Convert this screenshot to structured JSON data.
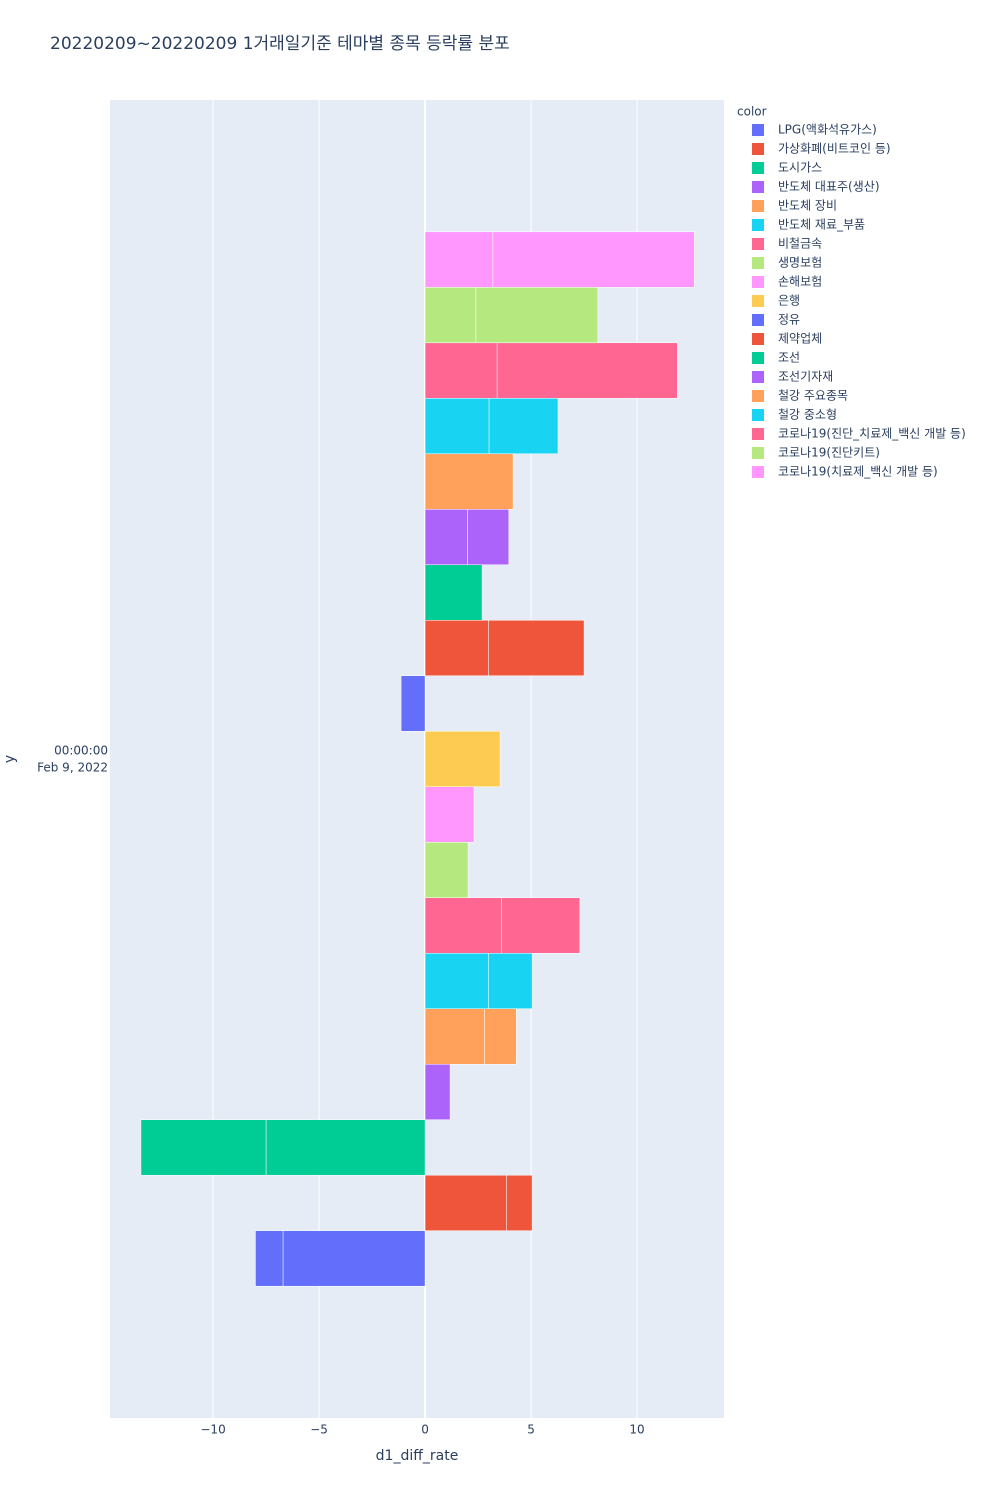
{
  "chart_data": {
    "type": "bar",
    "orientation": "horizontal",
    "barmode": "relative",
    "title": "20220209~20220209 1거래일기준 테마별 종목 등락률 분포",
    "xlabel": "d1_diff_rate",
    "ylabel": "y",
    "legend_title": "color",
    "ytick_label": [
      "00:00:00",
      "Feb 9, 2022"
    ],
    "xlim": [
      -14.86,
      14.1
    ],
    "xticks": [
      {
        "value": -10,
        "label": "−10"
      },
      {
        "value": -5,
        "label": "−5"
      },
      0,
      5,
      10
    ],
    "grid": true,
    "legend": "right",
    "series": [
      {
        "name": "LPG(액화석유가스)",
        "color": "#636efa",
        "values": [
          -6.7,
          -1.3
        ]
      },
      {
        "name": "가상화폐(비트코인 등)",
        "color": "#EF553B",
        "values": [
          3.85,
          1.2
        ]
      },
      {
        "name": "도시가스",
        "color": "#00cc96",
        "values": [
          -7.5,
          -5.9
        ]
      },
      {
        "name": "반도체 대표주(생산)",
        "color": "#ab63fa",
        "values": [
          1.18
        ]
      },
      {
        "name": "반도체 장비",
        "color": "#FFA15A",
        "values": [
          2.8,
          1.5
        ]
      },
      {
        "name": "반도체 재료_부품",
        "color": "#19d3f3",
        "values": [
          3.0,
          2.05
        ]
      },
      {
        "name": "비철금속",
        "color": "#FF6692",
        "values": [
          3.6,
          3.7
        ]
      },
      {
        "name": "생명보험",
        "color": "#B6E880",
        "values": [
          2.03
        ]
      },
      {
        "name": "손해보험",
        "color": "#FF97FF",
        "values": [
          2.31
        ]
      },
      {
        "name": "은행",
        "color": "#FECB52",
        "values": [
          3.54
        ]
      },
      {
        "name": "정유",
        "color": "#636efa",
        "values": [
          -1.13
        ]
      },
      {
        "name": "제약업체",
        "color": "#EF553B",
        "values": [
          3.0,
          4.5
        ]
      },
      {
        "name": "조선",
        "color": "#00cc96",
        "values": [
          2.69
        ]
      },
      {
        "name": "조선기자재",
        "color": "#ab63fa",
        "values": [
          2.0,
          1.95
        ]
      },
      {
        "name": "철강 주요종목",
        "color": "#FFA15A",
        "values": [
          4.15
        ]
      },
      {
        "name": "철강 중소형",
        "color": "#19d3f3",
        "values": [
          3.02,
          3.25
        ]
      },
      {
        "name": "코로나19(진단_치료제_백신 개발 등)",
        "color": "#FF6692",
        "values": [
          3.4,
          8.5
        ]
      },
      {
        "name": "코로나19(진단키트)",
        "color": "#B6E880",
        "values": [
          2.4,
          5.75
        ]
      },
      {
        "name": "코로나19(치료제_백신 개발 등)",
        "color": "#FF97FF",
        "values": [
          3.2,
          9.5
        ]
      }
    ]
  }
}
